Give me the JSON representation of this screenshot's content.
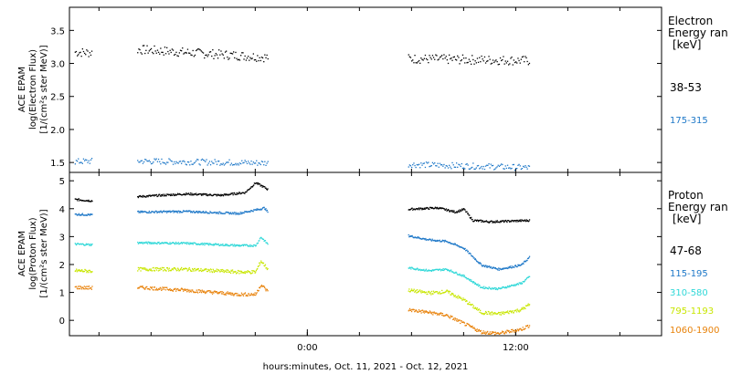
{
  "chart_data": [
    {
      "type": "scatter",
      "panel": "electron",
      "ylabel": [
        "ACE EPAM",
        "log(Electron Flux)",
        "[1/(cm²s ster MeV)]"
      ],
      "ylim": [
        1.35,
        3.85
      ],
      "yticks": [
        1.5,
        2.0,
        2.5,
        3.0,
        3.5
      ],
      "ytick_labels": [
        "1.5",
        "2.0",
        "2.5",
        "3.0",
        "3.5"
      ],
      "legend": {
        "title": [
          "Electron",
          "Energy ran",
          "[keV]"
        ],
        "placement": "right"
      },
      "series": [
        {
          "name": "38-53",
          "color": "#000000",
          "segments": [
            {
              "x": [
                -13.4,
                -12.4
              ],
              "y": [
                3.18,
                3.17
              ]
            },
            {
              "x": [
                -9.8,
                -2.3
              ],
              "y": [
                3.22,
                3.1
              ]
            },
            {
              "x": [
                5.8,
                12.8
              ],
              "y": [
                3.08,
                3.05
              ]
            }
          ]
        },
        {
          "name": "175-315",
          "color": "#1e78c8",
          "segments": [
            {
              "x": [
                -13.4,
                -12.4
              ],
              "y": [
                1.52,
                1.53
              ]
            },
            {
              "x": [
                -9.8,
                -2.3
              ],
              "y": [
                1.53,
                1.5
              ]
            },
            {
              "x": [
                5.8,
                12.8
              ],
              "y": [
                1.48,
                1.43
              ]
            }
          ]
        }
      ]
    },
    {
      "type": "line",
      "panel": "proton",
      "ylabel": [
        "ACE EPAM",
        "log(Proton Flux)",
        "[1/(cm²s ster MeV)]"
      ],
      "ylim": [
        -0.55,
        5.3
      ],
      "yticks": [
        0,
        1,
        2,
        3,
        4,
        5
      ],
      "ytick_labels": [
        "0",
        "1",
        "2",
        "3",
        "4",
        "5"
      ],
      "xlabel": "hours:minutes, Oct. 11, 2021 - Oct. 12, 2021",
      "xlim": [
        -13.7,
        20.4
      ],
      "xticks": [
        0,
        12
      ],
      "xtick_labels": [
        "0:00",
        "12:00"
      ],
      "legend": {
        "title": [
          "Proton",
          "Energy ran",
          "[keV]"
        ],
        "placement": "right"
      },
      "series": [
        {
          "name": "47-68",
          "color": "#000000",
          "segments": [
            {
              "x": [
                -13.4,
                -12.4
              ],
              "y": [
                4.35,
                4.3
              ]
            },
            {
              "x": [
                -9.8,
                -7,
                -5,
                -3.6,
                -3,
                -2.4,
                -2.3
              ],
              "y": [
                4.45,
                4.55,
                4.5,
                4.6,
                4.95,
                4.75,
                4.7
              ]
            },
            {
              "x": [
                5.8,
                7.5,
                8.5,
                9,
                9.5,
                10.5,
                12.8
              ],
              "y": [
                4.0,
                4.05,
                3.9,
                4.0,
                3.6,
                3.55,
                3.6
              ]
            }
          ]
        },
        {
          "name": "115-195",
          "color": "#1e78c8",
          "segments": [
            {
              "x": [
                -13.4,
                -12.4
              ],
              "y": [
                3.82,
                3.8
              ]
            },
            {
              "x": [
                -9.8,
                -7,
                -4,
                -2.8,
                -2.5,
                -2.3
              ],
              "y": [
                3.9,
                3.92,
                3.85,
                4.0,
                4.05,
                3.9
              ]
            },
            {
              "x": [
                5.8,
                7,
                8,
                9,
                10,
                11,
                12.3,
                12.8
              ],
              "y": [
                3.05,
                2.9,
                2.85,
                2.6,
                2.0,
                1.85,
                2.0,
                2.3
              ]
            }
          ]
        },
        {
          "name": "310-580",
          "color": "#30d8d8",
          "segments": [
            {
              "x": [
                -13.4,
                -12.4
              ],
              "y": [
                2.75,
                2.73
              ]
            },
            {
              "x": [
                -9.8,
                -7,
                -4,
                -3,
                -2.7,
                -2.3
              ],
              "y": [
                2.8,
                2.78,
                2.7,
                2.7,
                3.0,
                2.75
              ]
            },
            {
              "x": [
                5.8,
                7,
                8,
                9,
                10,
                11,
                12.3,
                12.8
              ],
              "y": [
                1.9,
                1.8,
                1.85,
                1.6,
                1.2,
                1.15,
                1.35,
                1.6
              ]
            }
          ]
        },
        {
          "name": "795-1193",
          "color": "#c8e600",
          "segments": [
            {
              "x": [
                -13.4,
                -12.4
              ],
              "y": [
                1.8,
                1.78
              ]
            },
            {
              "x": [
                -9.8,
                -7,
                -4,
                -3,
                -2.7,
                -2.3
              ],
              "y": [
                1.85,
                1.85,
                1.75,
                1.75,
                2.15,
                1.85
              ]
            },
            {
              "x": [
                5.8,
                7,
                8,
                9,
                10,
                11,
                12.3,
                12.8
              ],
              "y": [
                1.1,
                1.0,
                1.05,
                0.75,
                0.3,
                0.25,
                0.4,
                0.6
              ]
            }
          ]
        },
        {
          "name": "1060-1900",
          "color": "#e8820a",
          "segments": [
            {
              "x": [
                -13.4,
                -12.4
              ],
              "y": [
                1.2,
                1.18
              ]
            },
            {
              "x": [
                -9.8,
                -7,
                -4,
                -3,
                -2.7,
                -2.3
              ],
              "y": [
                1.2,
                1.1,
                0.95,
                0.95,
                1.3,
                1.05
              ]
            },
            {
              "x": [
                5.8,
                7,
                8,
                9,
                10,
                11,
                12.3,
                12.8
              ],
              "y": [
                0.4,
                0.3,
                0.2,
                -0.1,
                -0.4,
                -0.45,
                -0.3,
                -0.15
              ]
            }
          ]
        }
      ]
    }
  ]
}
